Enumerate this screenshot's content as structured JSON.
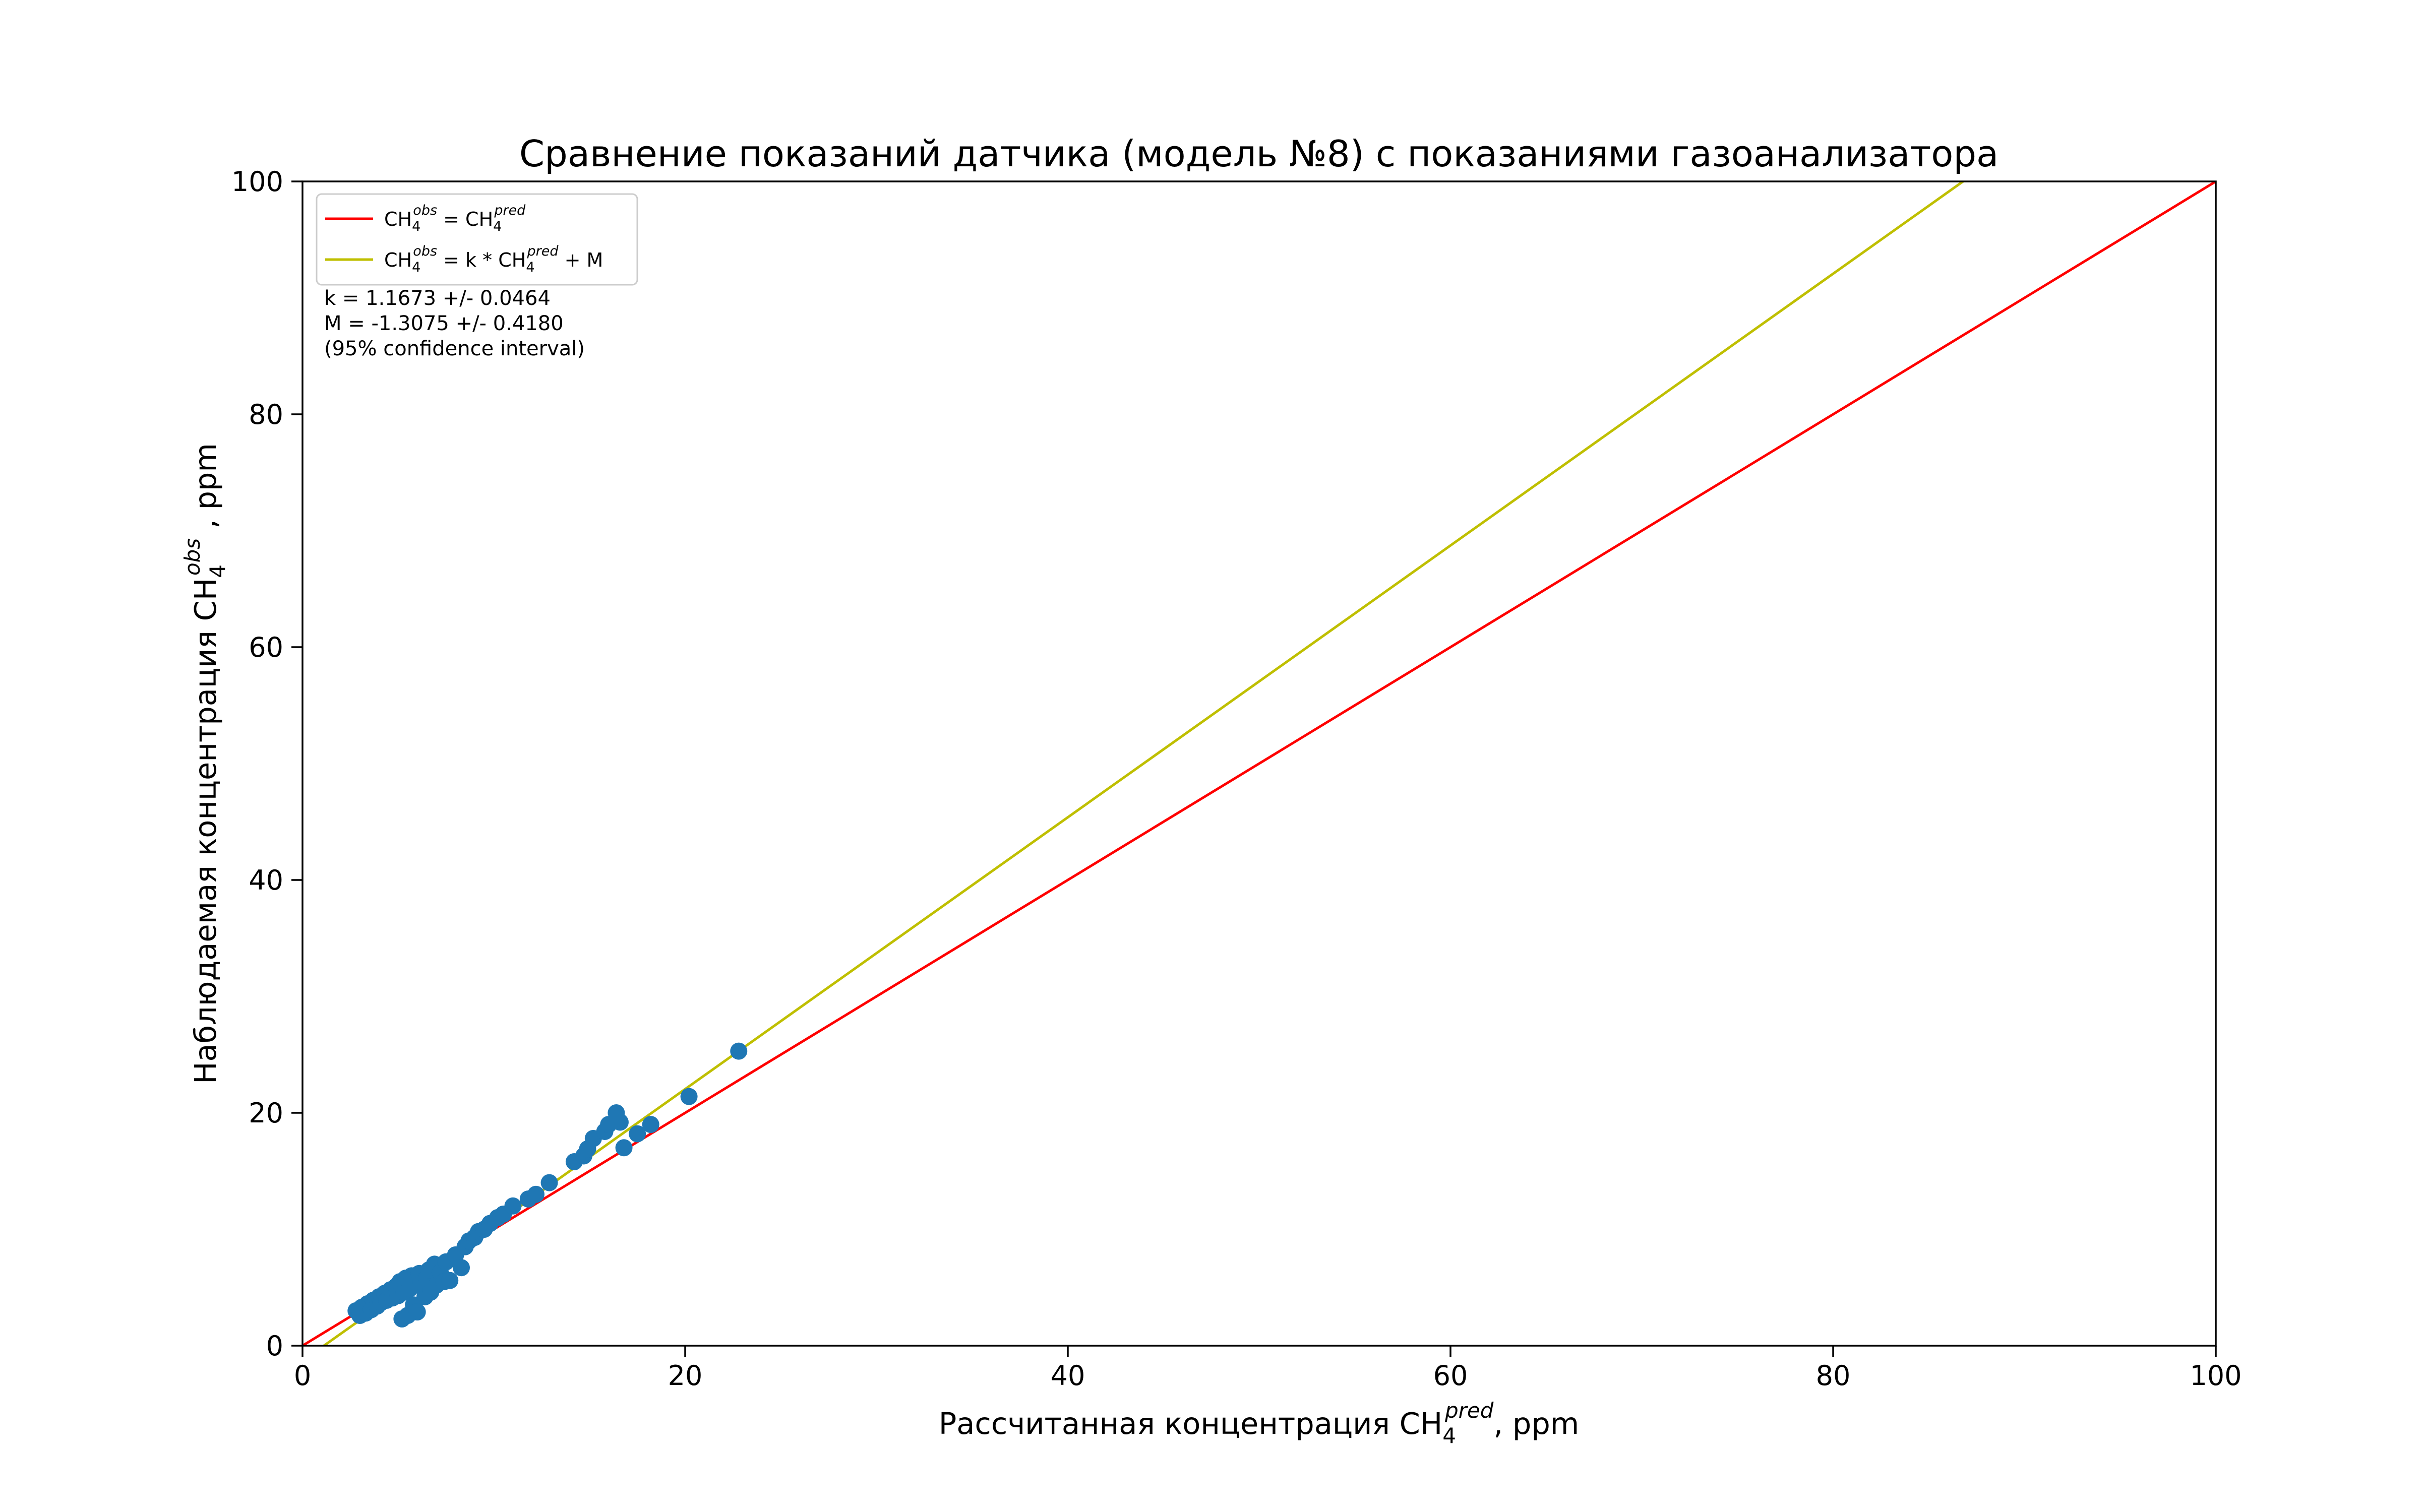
{
  "chart_data": {
    "type": "scatter",
    "title": "Сравнение показаний датчика (модель №8) с показаниями газоанализатора",
    "xlabel": {
      "prefix": "Рассчитанная концентрация CH",
      "sub": "4",
      "sup": "pred",
      "suffix": ", ppm"
    },
    "ylabel": {
      "prefix": "Наблюдаемая концентрация CH",
      "sub": "4",
      "sup": "obs",
      "suffix": " , ppm"
    },
    "xlim": [
      0,
      100
    ],
    "ylim": [
      0,
      100
    ],
    "xticks": [
      "0",
      "20",
      "40",
      "60",
      "80",
      "100"
    ],
    "yticks": [
      "0",
      "20",
      "40",
      "60",
      "80",
      "100"
    ],
    "grid": false,
    "legend_position": "top-left",
    "legend": [
      {
        "text": "CH4^obs = CH4^pred",
        "color": "#ff0000"
      },
      {
        "text": "CH4^obs = k * CH4^pred + M",
        "color": "#bfbf00"
      }
    ],
    "annotation": [
      "k = 1.1673 +/- 0.0464",
      "M = -1.3075 +/- 0.4180",
      "(95% confidence interval)"
    ],
    "lines": [
      {
        "name": "CH4obs = CH4pred",
        "slope": 1,
        "intercept": 0,
        "color": "#ff0000"
      },
      {
        "name": "CH4obs = k * CH4pred + M",
        "slope": 1.1673,
        "intercept": -1.3075,
        "color": "#bfbf00"
      }
    ],
    "series": [
      {
        "color": "#1f77b4",
        "points": [
          [
            2.8,
            3.0
          ],
          [
            3.0,
            2.6
          ],
          [
            3.1,
            3.3
          ],
          [
            3.3,
            2.8
          ],
          [
            3.4,
            3.6
          ],
          [
            3.6,
            3.1
          ],
          [
            3.7,
            3.9
          ],
          [
            3.9,
            3.4
          ],
          [
            4.0,
            4.2
          ],
          [
            4.1,
            3.7
          ],
          [
            4.3,
            4.5
          ],
          [
            4.4,
            3.9
          ],
          [
            4.6,
            4.8
          ],
          [
            4.7,
            4.1
          ],
          [
            4.9,
            5.1
          ],
          [
            5.0,
            4.3
          ],
          [
            5.1,
            5.5
          ],
          [
            5.2,
            2.3
          ],
          [
            5.3,
            4.6
          ],
          [
            5.4,
            5.8
          ],
          [
            5.5,
            2.6
          ],
          [
            5.6,
            4.9
          ],
          [
            5.7,
            6.0
          ],
          [
            5.8,
            3.5
          ],
          [
            5.9,
            5.2
          ],
          [
            6.0,
            2.9
          ],
          [
            6.1,
            6.2
          ],
          [
            6.2,
            5.5
          ],
          [
            6.4,
            4.2
          ],
          [
            6.5,
            5.8
          ],
          [
            6.6,
            6.5
          ],
          [
            6.7,
            4.6
          ],
          [
            6.9,
            7.0
          ],
          [
            7.0,
            5.2
          ],
          [
            7.2,
            6.3
          ],
          [
            7.4,
            5.5
          ],
          [
            7.5,
            7.2
          ],
          [
            7.7,
            5.6
          ],
          [
            8.0,
            7.8
          ],
          [
            8.3,
            6.7
          ],
          [
            8.5,
            8.5
          ],
          [
            8.7,
            9.0
          ],
          [
            9.0,
            9.3
          ],
          [
            9.2,
            9.8
          ],
          [
            9.5,
            10.0
          ],
          [
            9.8,
            10.5
          ],
          [
            10.2,
            11.0
          ],
          [
            10.5,
            11.3
          ],
          [
            11.0,
            12.0
          ],
          [
            11.8,
            12.6
          ],
          [
            12.2,
            13.0
          ],
          [
            12.9,
            14.0
          ],
          [
            14.2,
            15.8
          ],
          [
            14.7,
            16.3
          ],
          [
            14.9,
            16.9
          ],
          [
            15.2,
            17.8
          ],
          [
            15.8,
            18.4
          ],
          [
            16.0,
            19.0
          ],
          [
            16.4,
            20.0
          ],
          [
            16.6,
            19.2
          ],
          [
            16.8,
            17.0
          ],
          [
            17.5,
            18.2
          ],
          [
            18.2,
            19.0
          ],
          [
            20.2,
            21.4
          ],
          [
            22.8,
            25.3
          ]
        ]
      }
    ]
  }
}
